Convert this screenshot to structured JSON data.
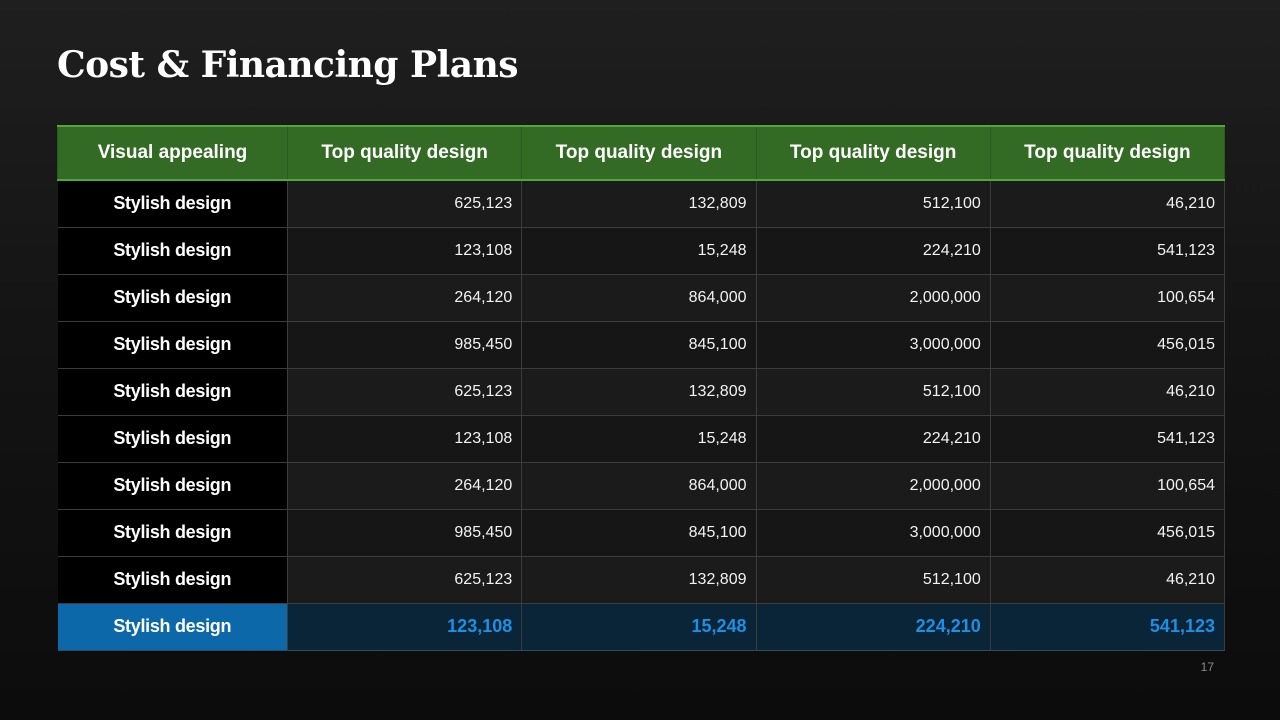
{
  "slide": {
    "title": "Cost & Financing Plans",
    "page_number": "17"
  },
  "colors": {
    "header_background": "#336b24",
    "header_border": "#4ea83a",
    "total_label_background": "#0d68aa",
    "total_value_color": "#1d8fe4"
  },
  "table": {
    "headers": [
      "Visual appealing",
      "Top quality design",
      "Top quality design",
      "Top quality design",
      "Top quality design"
    ],
    "rows": [
      {
        "label": "Stylish design",
        "values": [
          "625,123",
          "132,809",
          "512,100",
          "46,210"
        ]
      },
      {
        "label": "Stylish design",
        "values": [
          "123,108",
          "15,248",
          "224,210",
          "541,123"
        ]
      },
      {
        "label": "Stylish design",
        "values": [
          "264,120",
          "864,000",
          "2,000,000",
          "100,654"
        ]
      },
      {
        "label": "Stylish design",
        "values": [
          "985,450",
          "845,100",
          "3,000,000",
          "456,015"
        ]
      },
      {
        "label": "Stylish design",
        "values": [
          "625,123",
          "132,809",
          "512,100",
          "46,210"
        ]
      },
      {
        "label": "Stylish design",
        "values": [
          "123,108",
          "15,248",
          "224,210",
          "541,123"
        ]
      },
      {
        "label": "Stylish design",
        "values": [
          "264,120",
          "864,000",
          "2,000,000",
          "100,654"
        ]
      },
      {
        "label": "Stylish design",
        "values": [
          "985,450",
          "845,100",
          "3,000,000",
          "456,015"
        ]
      },
      {
        "label": "Stylish design",
        "values": [
          "625,123",
          "132,809",
          "512,100",
          "46,210"
        ]
      }
    ],
    "total_row": {
      "label": "Stylish design",
      "values": [
        "123,108",
        "15,248",
        "224,210",
        "541,123"
      ]
    }
  }
}
